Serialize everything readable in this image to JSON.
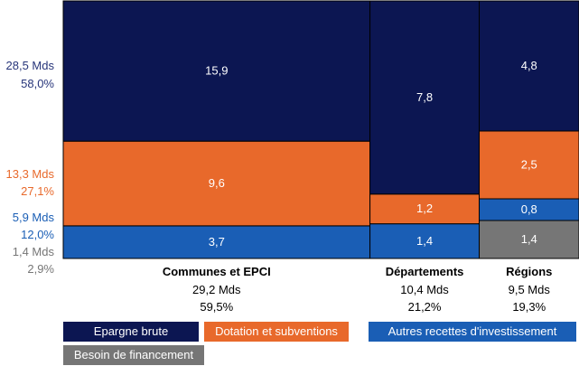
{
  "chart_data": {
    "type": "marimekko",
    "title": "",
    "colors": {
      "Epargne brute": "#0c1652",
      "Dotation et subventions": "#e8692b",
      "Autres recettes d'investissement": "#1a5eb5",
      "Besoin de financement": "#767676"
    },
    "series_order_bottom_to_top": [
      "Besoin de financement",
      "Autres recettes d'investissement",
      "Dotation et subventions",
      "Epargne brute"
    ],
    "categories": [
      {
        "name": "Communes et EPCI",
        "total": "29,2 Mds",
        "share": "59,5%",
        "total_value": 29.2,
        "share_value": 59.5
      },
      {
        "name": "Départements",
        "total": "10,4 Mds",
        "share": "21,2%",
        "total_value": 10.4,
        "share_value": 21.2
      },
      {
        "name": "Régions",
        "total": "9,5 Mds",
        "share": "19,3%",
        "total_value": 9.5,
        "share_value": 19.3
      }
    ],
    "series": [
      {
        "name": "Epargne brute",
        "values": [
          15.9,
          7.8,
          4.8
        ],
        "labels": [
          "15,9",
          "7,8",
          "4,8"
        ]
      },
      {
        "name": "Dotation et subventions",
        "values": [
          9.6,
          1.2,
          2.5
        ],
        "labels": [
          "9,6",
          "1,2",
          "2,5"
        ]
      },
      {
        "name": "Autres recettes d'investissement",
        "values": [
          3.7,
          1.4,
          0.8
        ],
        "labels": [
          "3,7",
          "1,4",
          "0,8"
        ]
      },
      {
        "name": "Besoin de financement",
        "values": [
          0,
          0,
          1.4
        ],
        "labels": [
          "",
          "",
          "1,4"
        ]
      }
    ],
    "totals_by_series": [
      {
        "name": "Epargne brute",
        "amount": "28,5 Mds",
        "share": "58,0%",
        "color": "#27357a"
      },
      {
        "name": "Dotation et subventions",
        "amount": "13,3 Mds",
        "share": "27,1%",
        "color": "#e8692b"
      },
      {
        "name": "Autres recettes d'investissement",
        "amount": "5,9 Mds",
        "share": "12,0%",
        "color": "#1a5eb5"
      },
      {
        "name": "Besoin de financement",
        "amount": "1,4 Mds",
        "share": "2,9%",
        "color": "#767676"
      }
    ],
    "legend": {
      "placement": "bottom",
      "items": [
        {
          "label": "Epargne brute",
          "color": "#0c1652"
        },
        {
          "label": "Dotation et subventions",
          "color": "#e8692b"
        },
        {
          "label": "Autres recettes d'investissement",
          "color": "#1a5eb5"
        },
        {
          "label": "Besoin de financement",
          "color": "#767676"
        }
      ]
    },
    "grid": false
  }
}
